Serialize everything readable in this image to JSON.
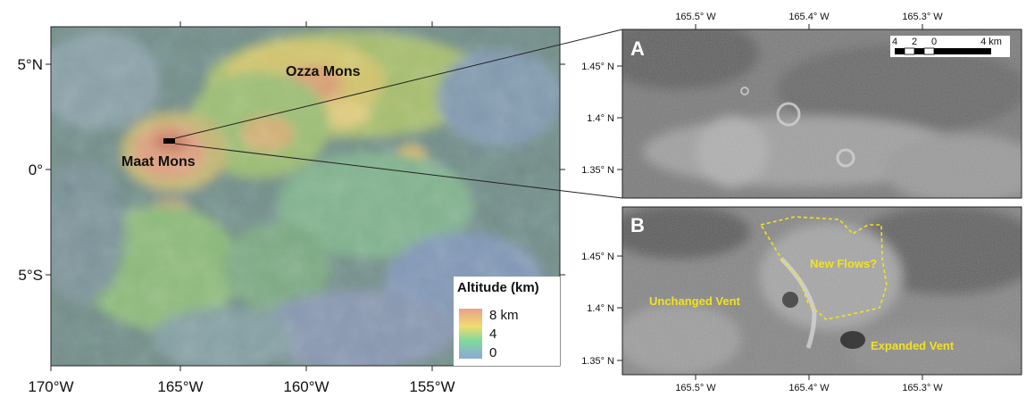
{
  "overview_map": {
    "lon_ticks": [
      "170°W",
      "165°W",
      "160°W",
      "155°W"
    ],
    "lat_ticks": [
      "5°N",
      "0°",
      "5°S"
    ],
    "features": [
      {
        "name": "Ozza Mons"
      },
      {
        "name": "Maat Mons"
      }
    ],
    "legend": {
      "title": "Altitude (km)",
      "labels": [
        "8 km",
        "4",
        "0"
      ],
      "colors": [
        "#e8a08a",
        "#f0dc70",
        "#7ed8a0",
        "#8fa6d8"
      ]
    }
  },
  "panel_a": {
    "label": "A",
    "lon_ticks": [
      "165.5° W",
      "165.4° W",
      "165.3° W"
    ],
    "lat_ticks": [
      "1.45° N",
      "1.4° N",
      "1.35° N"
    ],
    "scale_bar": {
      "labels": [
        "4",
        "2",
        "0",
        "4 km"
      ]
    }
  },
  "panel_b": {
    "label": "B",
    "lon_ticks": [
      "165.5° W",
      "165.4° W",
      "165.3° W"
    ],
    "lat_ticks": [
      "1.45° N",
      "1.4° N",
      "1.35° N"
    ],
    "annotations": [
      "New Flows?",
      "Unchanged Vent",
      "Expanded Vent"
    ],
    "annotation_color": "#f2e21a"
  }
}
